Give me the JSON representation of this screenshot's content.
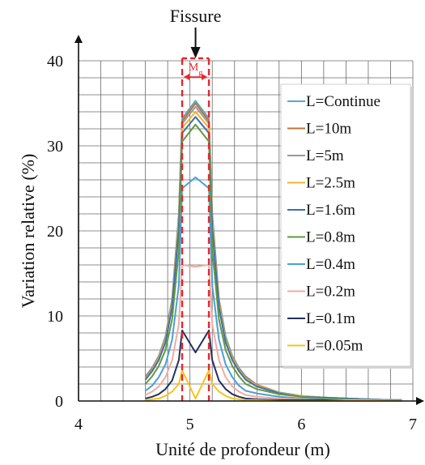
{
  "chart_data": {
    "type": "line",
    "title": "",
    "xlabel": "Unité de profondeur (m)",
    "ylabel": "Variation relative (%)",
    "xlim": [
      4,
      7
    ],
    "ylim": [
      0,
      40
    ],
    "xticks": [
      "4",
      "5",
      "6",
      "7"
    ],
    "yticks": [
      "0",
      "10",
      "20",
      "30",
      "40"
    ],
    "grid": true,
    "legend_position": "right",
    "annotations": {
      "fissure_label": "Fissure",
      "fissure_x": 5.05,
      "zone_label": "Mg",
      "zone_label_main": "M",
      "zone_label_sub": "g",
      "zone_x": [
        4.93,
        5.17
      ],
      "zone_color": "#e8262a"
    },
    "x": [
      4.6,
      4.66,
      4.72,
      4.78,
      4.84,
      4.9,
      4.93,
      5.05,
      5.17,
      5.2,
      5.26,
      5.32,
      5.38,
      5.44,
      5.5,
      5.6,
      5.8,
      6.0,
      6.2,
      6.4,
      6.6,
      6.8,
      6.9
    ],
    "series": [
      {
        "name": "L=Continue",
        "color": "#59a9c4",
        "values": [
          2.9,
          3.9,
          5.3,
          7.6,
          12.0,
          22.0,
          33.2,
          35.3,
          33.2,
          22.0,
          12.0,
          7.6,
          5.3,
          3.9,
          2.9,
          1.9,
          1.0,
          0.6,
          0.4,
          0.3,
          0.2,
          0.1,
          0.1
        ]
      },
      {
        "name": "L=10m",
        "color": "#c0733c",
        "values": [
          2.8,
          3.8,
          5.2,
          7.4,
          11.8,
          21.6,
          32.9,
          35.0,
          32.9,
          21.6,
          11.8,
          7.4,
          5.2,
          3.8,
          2.8,
          1.9,
          1.0,
          0.6,
          0.4,
          0.3,
          0.2,
          0.1,
          0.1
        ]
      },
      {
        "name": "L=5m",
        "color": "#9a9a9a",
        "values": [
          2.7,
          3.7,
          5.1,
          7.3,
          11.6,
          21.3,
          32.6,
          34.6,
          32.6,
          21.3,
          11.6,
          7.3,
          5.1,
          3.7,
          2.7,
          1.8,
          1.0,
          0.6,
          0.4,
          0.3,
          0.2,
          0.1,
          0.1
        ]
      },
      {
        "name": "L=2.5m",
        "color": "#f0b42c",
        "values": [
          2.6,
          3.6,
          5.0,
          7.1,
          11.3,
          20.9,
          32.1,
          34.0,
          32.1,
          20.9,
          11.3,
          7.1,
          5.0,
          3.6,
          2.6,
          1.8,
          0.9,
          0.6,
          0.4,
          0.3,
          0.2,
          0.1,
          0.1
        ]
      },
      {
        "name": "L=1.6m",
        "color": "#3f6db0",
        "values": [
          2.5,
          3.5,
          4.8,
          6.9,
          11.0,
          20.3,
          31.5,
          33.4,
          31.5,
          20.3,
          11.0,
          6.9,
          4.8,
          3.5,
          2.5,
          1.7,
          0.9,
          0.5,
          0.4,
          0.3,
          0.2,
          0.1,
          0.1
        ]
      },
      {
        "name": "L=0.8m",
        "color": "#5f9a3c",
        "values": [
          2.0,
          2.9,
          4.1,
          6.0,
          9.6,
          17.8,
          30.5,
          32.5,
          30.5,
          17.8,
          9.6,
          6.0,
          4.1,
          2.9,
          2.0,
          1.4,
          0.8,
          0.5,
          0.3,
          0.2,
          0.1,
          0.1,
          0.1
        ]
      },
      {
        "name": "L=0.4m",
        "color": "#4aa0d8",
        "values": [
          1.2,
          1.8,
          2.8,
          4.3,
          7.2,
          13.6,
          25.0,
          26.3,
          25.0,
          13.6,
          7.2,
          4.3,
          2.8,
          1.8,
          1.2,
          0.9,
          0.5,
          0.3,
          0.2,
          0.1,
          0.1,
          0.1,
          0.1
        ]
      },
      {
        "name": "L=0.2m",
        "color": "#f2aaa2",
        "values": [
          0.7,
          1.1,
          1.7,
          2.8,
          4.8,
          9.0,
          16.0,
          15.8,
          16.0,
          9.0,
          4.8,
          2.8,
          1.7,
          1.1,
          0.7,
          0.5,
          0.3,
          0.2,
          0.1,
          0.1,
          0.1,
          0.0,
          0.0
        ]
      },
      {
        "name": "L=0.1m",
        "color": "#25305e",
        "values": [
          0.3,
          0.5,
          0.8,
          1.4,
          2.4,
          4.8,
          8.3,
          5.7,
          8.3,
          4.8,
          2.4,
          1.4,
          0.8,
          0.5,
          0.3,
          0.2,
          0.1,
          0.1,
          0.1,
          0.0,
          0.0,
          0.0,
          0.0
        ]
      },
      {
        "name": "L=0.05m",
        "color": "#f5c518",
        "values": [
          0.1,
          0.2,
          0.3,
          0.6,
          1.1,
          2.0,
          3.6,
          0.3,
          3.6,
          2.0,
          1.1,
          0.6,
          0.3,
          0.2,
          0.1,
          0.1,
          0.0,
          0.0,
          0.0,
          0.0,
          0.0,
          0.0,
          0.0
        ]
      }
    ]
  }
}
